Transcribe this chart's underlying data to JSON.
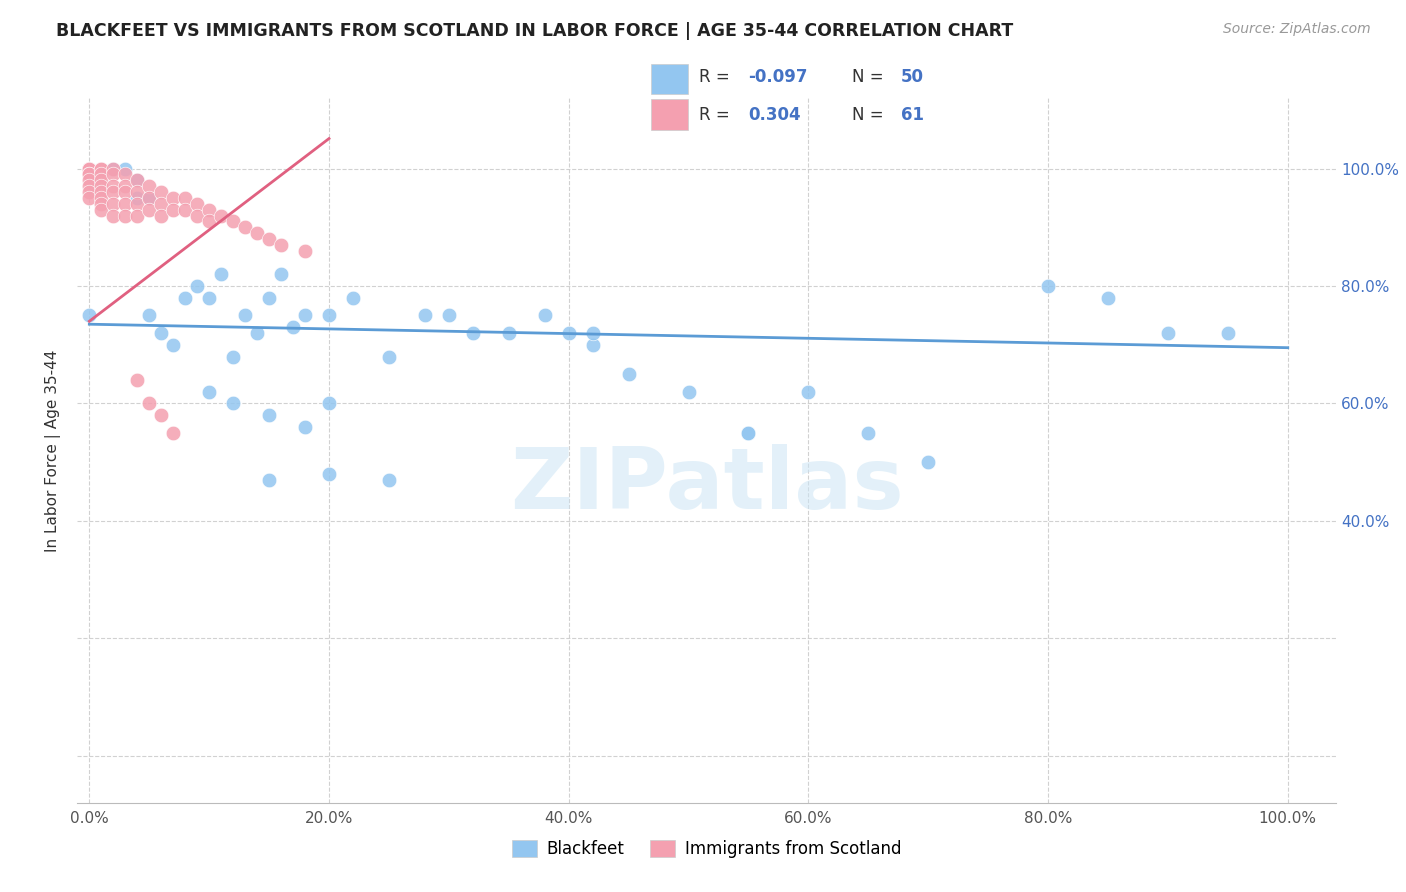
{
  "title": "BLACKFEET VS IMMIGRANTS FROM SCOTLAND IN LABOR FORCE | AGE 35-44 CORRELATION CHART",
  "source": "Source: ZipAtlas.com",
  "ylabel": "In Labor Force | Age 35-44",
  "R_blackfeet": -0.097,
  "N_blackfeet": 50,
  "R_scotland": 0.304,
  "N_scotland": 61,
  "blackfeet_color": "#93c6f0",
  "scotland_color": "#f4a0b0",
  "blackfeet_line_color": "#5b9bd5",
  "scotland_line_color": "#e06080",
  "bf_line_x0": 0.0,
  "bf_line_y0": 0.735,
  "bf_line_x1": 1.0,
  "bf_line_y1": 0.695,
  "sc_line_x0": 0.0,
  "sc_line_y0": 0.74,
  "sc_line_x1": 0.18,
  "sc_line_y1": 1.02,
  "xlim": [
    -0.01,
    1.04
  ],
  "ylim": [
    -0.08,
    1.12
  ],
  "xticks": [
    0.0,
    0.2,
    0.4,
    0.6,
    0.8,
    1.0
  ],
  "yticks": [
    0.0,
    0.2,
    0.4,
    0.6,
    0.8,
    1.0
  ],
  "xticklabels": [
    "0.0%",
    "20.0%",
    "40.0%",
    "60.0%",
    "80.0%",
    "100.0%"
  ],
  "ytick_right_labels": [
    "",
    "",
    "40.0%",
    "60.0%",
    "80.0%",
    "100.0%"
  ]
}
